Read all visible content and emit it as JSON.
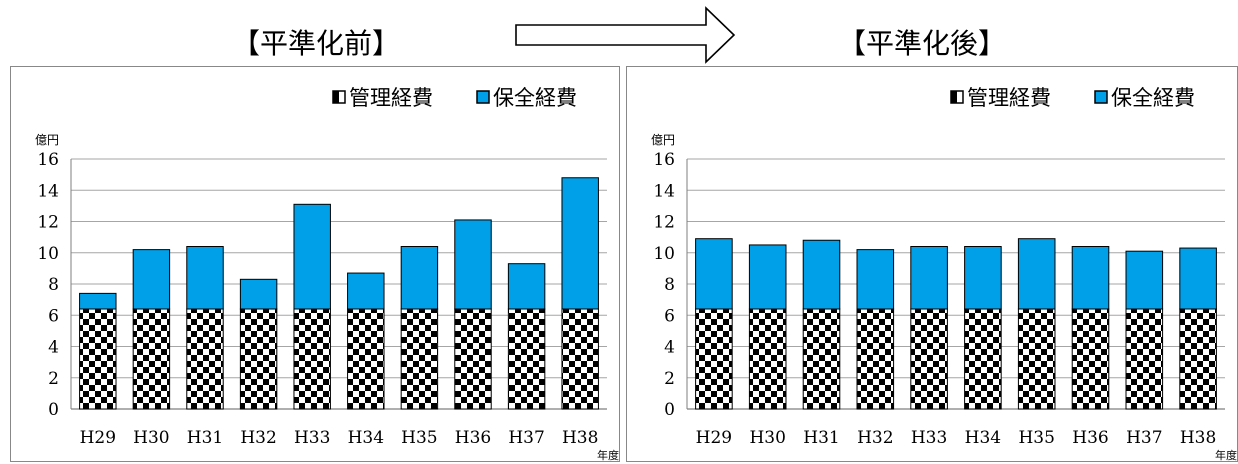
{
  "titles": {
    "before": "【平準化前】",
    "after": "【平準化後】"
  },
  "colors": {
    "maintenance": "#00A0E9",
    "management": "#000000",
    "grid": "#a6a6a6"
  },
  "chart_data": [
    {
      "type": "bar",
      "stacked": true,
      "title": "【平準化前】",
      "ylabel": "億円",
      "xlabel": "年度",
      "ylim": [
        0,
        16
      ],
      "yticks": [
        0,
        2,
        4,
        6,
        8,
        10,
        12,
        14,
        16
      ],
      "grid": true,
      "legend": "top-right",
      "categories": [
        "H29",
        "H30",
        "H31",
        "H32",
        "H33",
        "H34",
        "H35",
        "H36",
        "H37",
        "H38"
      ],
      "series": [
        {
          "name": "管理経費",
          "pattern": "checkerboard",
          "values": [
            6.4,
            6.4,
            6.4,
            6.4,
            6.4,
            6.4,
            6.4,
            6.4,
            6.4,
            6.4
          ]
        },
        {
          "name": "保全経費",
          "color": "#00A0E9",
          "values": [
            1.0,
            3.8,
            4.0,
            1.9,
            6.7,
            2.3,
            4.0,
            5.7,
            2.9,
            8.4
          ]
        }
      ]
    },
    {
      "type": "bar",
      "stacked": true,
      "title": "【平準化後】",
      "ylabel": "億円",
      "xlabel": "年度",
      "ylim": [
        0,
        16
      ],
      "yticks": [
        0,
        2,
        4,
        6,
        8,
        10,
        12,
        14,
        16
      ],
      "grid": true,
      "legend": "top-right",
      "categories": [
        "H29",
        "H30",
        "H31",
        "H32",
        "H33",
        "H34",
        "H35",
        "H36",
        "H37",
        "H38"
      ],
      "series": [
        {
          "name": "管理経費",
          "pattern": "checkerboard",
          "values": [
            6.4,
            6.4,
            6.4,
            6.4,
            6.4,
            6.4,
            6.4,
            6.4,
            6.4,
            6.4
          ]
        },
        {
          "name": "保全経費",
          "color": "#00A0E9",
          "values": [
            4.5,
            4.1,
            4.4,
            3.8,
            4.0,
            4.0,
            4.5,
            4.0,
            3.7,
            3.9
          ]
        }
      ]
    }
  ]
}
